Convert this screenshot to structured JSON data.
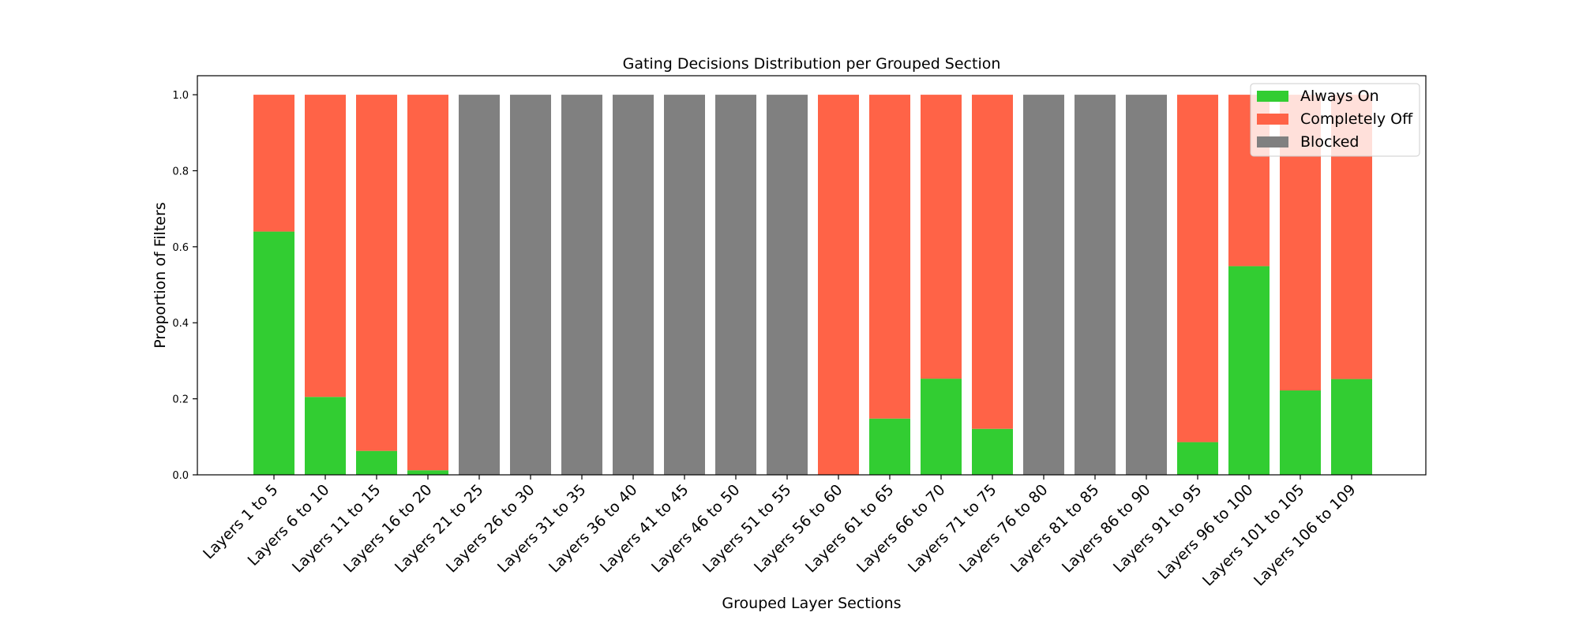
{
  "chart_data": {
    "type": "bar",
    "stacked": true,
    "title": "Gating Decisions Distribution per Grouped Section",
    "xlabel": "Grouped Layer Sections",
    "ylabel": "Proportion of Filters",
    "ylim": [
      0,
      1.05
    ],
    "yticks": [
      "0.0",
      "0.2",
      "0.4",
      "0.6",
      "0.8",
      "1.0"
    ],
    "grid": false,
    "legend_position": "top-right",
    "categories": [
      "Layers 1 to 5",
      "Layers 6 to 10",
      "Layers 11 to 15",
      "Layers 16 to 20",
      "Layers 21 to 25",
      "Layers 26 to 30",
      "Layers 31 to 35",
      "Layers 36 to 40",
      "Layers 41 to 45",
      "Layers 46 to 50",
      "Layers 51 to 55",
      "Layers 56 to 60",
      "Layers 61 to 65",
      "Layers 66 to 70",
      "Layers 71 to 75",
      "Layers 76 to 80",
      "Layers 81 to 85",
      "Layers 86 to 90",
      "Layers 91 to 95",
      "Layers 96 to 100",
      "Layers 101 to 105",
      "Layers 106 to 109"
    ],
    "series": [
      {
        "name": "Always On",
        "color": "#32cd32",
        "values": [
          0.64,
          0.205,
          0.063,
          0.012,
          0,
          0,
          0,
          0,
          0,
          0,
          0,
          0,
          0.148,
          0.253,
          0.121,
          0,
          0,
          0,
          0.086,
          0.549,
          0.222,
          0.252
        ]
      },
      {
        "name": "Completely Off",
        "color": "#ff6347",
        "values": [
          0.36,
          0.795,
          0.937,
          0.988,
          0,
          0,
          0,
          0,
          0,
          0,
          0,
          1.0,
          0.852,
          0.747,
          0.879,
          0,
          0,
          0,
          0.914,
          0.451,
          0.778,
          0.748
        ]
      },
      {
        "name": "Blocked",
        "color": "#808080",
        "values": [
          0,
          0,
          0,
          0,
          1.0,
          1.0,
          1.0,
          1.0,
          1.0,
          1.0,
          1.0,
          0,
          0,
          0,
          0,
          1.0,
          1.0,
          1.0,
          0,
          0,
          0,
          0
        ]
      }
    ]
  }
}
